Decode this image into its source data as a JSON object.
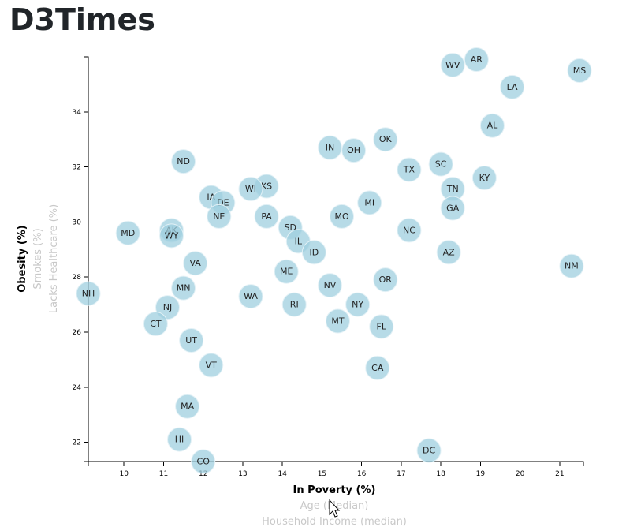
{
  "header": {
    "title": "D3Times"
  },
  "chart_data": {
    "type": "scatter",
    "xlim": [
      9.1,
      21.6
    ],
    "ylim": [
      21.3,
      36.0
    ],
    "x_ticks": [
      10,
      11,
      12,
      13,
      14,
      15,
      16,
      17,
      18,
      19,
      20,
      21
    ],
    "y_ticks": [
      22,
      24,
      26,
      28,
      30,
      32,
      34
    ],
    "x_axis_labels": [
      {
        "text": "In Poverty (%)",
        "active": true
      },
      {
        "text": "Age (Median)",
        "active": false
      },
      {
        "text": "Household Income (median)",
        "active": false
      }
    ],
    "y_axis_labels": [
      {
        "text": "Obesity (%)",
        "active": true
      },
      {
        "text": "Smokes (%)",
        "active": false
      },
      {
        "text": "Lacks Healthcare (%)",
        "active": false
      }
    ],
    "points": [
      {
        "abbr": "WV",
        "x": 18.3,
        "y": 35.7
      },
      {
        "abbr": "AR",
        "x": 18.9,
        "y": 35.9
      },
      {
        "abbr": "MS",
        "x": 21.5,
        "y": 35.5
      },
      {
        "abbr": "LA",
        "x": 19.8,
        "y": 34.9
      },
      {
        "abbr": "AL",
        "x": 19.3,
        "y": 33.5
      },
      {
        "abbr": "OK",
        "x": 16.6,
        "y": 33.0
      },
      {
        "abbr": "IN",
        "x": 15.2,
        "y": 32.7
      },
      {
        "abbr": "OH",
        "x": 15.8,
        "y": 32.6
      },
      {
        "abbr": "ND",
        "x": 11.5,
        "y": 32.2
      },
      {
        "abbr": "SC",
        "x": 18.0,
        "y": 32.1
      },
      {
        "abbr": "TX",
        "x": 17.2,
        "y": 31.9
      },
      {
        "abbr": "KY",
        "x": 19.1,
        "y": 31.6
      },
      {
        "abbr": "KS",
        "x": 13.6,
        "y": 31.3
      },
      {
        "abbr": "WI",
        "x": 13.2,
        "y": 31.2
      },
      {
        "abbr": "TN",
        "x": 18.3,
        "y": 31.2
      },
      {
        "abbr": "IA",
        "x": 12.2,
        "y": 30.9
      },
      {
        "abbr": "DE",
        "x": 12.5,
        "y": 30.7
      },
      {
        "abbr": "MI",
        "x": 16.2,
        "y": 30.7
      },
      {
        "abbr": "GA",
        "x": 18.3,
        "y": 30.5
      },
      {
        "abbr": "NE",
        "x": 12.4,
        "y": 30.2
      },
      {
        "abbr": "PA",
        "x": 13.6,
        "y": 30.2
      },
      {
        "abbr": "MO",
        "x": 15.5,
        "y": 30.2
      },
      {
        "abbr": "SD",
        "x": 14.2,
        "y": 29.8
      },
      {
        "abbr": "AK",
        "x": 11.2,
        "y": 29.7
      },
      {
        "abbr": "NC",
        "x": 17.2,
        "y": 29.7
      },
      {
        "abbr": "MD",
        "x": 10.1,
        "y": 29.6
      },
      {
        "abbr": "WY",
        "x": 11.2,
        "y": 29.5
      },
      {
        "abbr": "IL",
        "x": 14.4,
        "y": 29.3
      },
      {
        "abbr": "ID",
        "x": 14.8,
        "y": 28.9
      },
      {
        "abbr": "AZ",
        "x": 18.2,
        "y": 28.9
      },
      {
        "abbr": "VA",
        "x": 11.8,
        "y": 28.5
      },
      {
        "abbr": "NM",
        "x": 21.3,
        "y": 28.4
      },
      {
        "abbr": "ME",
        "x": 14.1,
        "y": 28.2
      },
      {
        "abbr": "OR",
        "x": 16.6,
        "y": 27.9
      },
      {
        "abbr": "NV",
        "x": 15.2,
        "y": 27.7
      },
      {
        "abbr": "MN",
        "x": 11.5,
        "y": 27.6
      },
      {
        "abbr": "NH",
        "x": 9.1,
        "y": 27.4
      },
      {
        "abbr": "WA",
        "x": 13.2,
        "y": 27.3
      },
      {
        "abbr": "RI",
        "x": 14.3,
        "y": 27.0
      },
      {
        "abbr": "NY",
        "x": 15.9,
        "y": 27.0
      },
      {
        "abbr": "NJ",
        "x": 11.1,
        "y": 26.9
      },
      {
        "abbr": "MT",
        "x": 15.4,
        "y": 26.4
      },
      {
        "abbr": "CT",
        "x": 10.8,
        "y": 26.3
      },
      {
        "abbr": "FL",
        "x": 16.5,
        "y": 26.2
      },
      {
        "abbr": "UT",
        "x": 11.7,
        "y": 25.7
      },
      {
        "abbr": "VT",
        "x": 12.2,
        "y": 24.8
      },
      {
        "abbr": "CA",
        "x": 16.4,
        "y": 24.7
      },
      {
        "abbr": "MA",
        "x": 11.6,
        "y": 23.3
      },
      {
        "abbr": "HI",
        "x": 11.4,
        "y": 22.1
      },
      {
        "abbr": "DC",
        "x": 17.7,
        "y": 21.7
      },
      {
        "abbr": "CO",
        "x": 12.0,
        "y": 21.3
      }
    ]
  }
}
